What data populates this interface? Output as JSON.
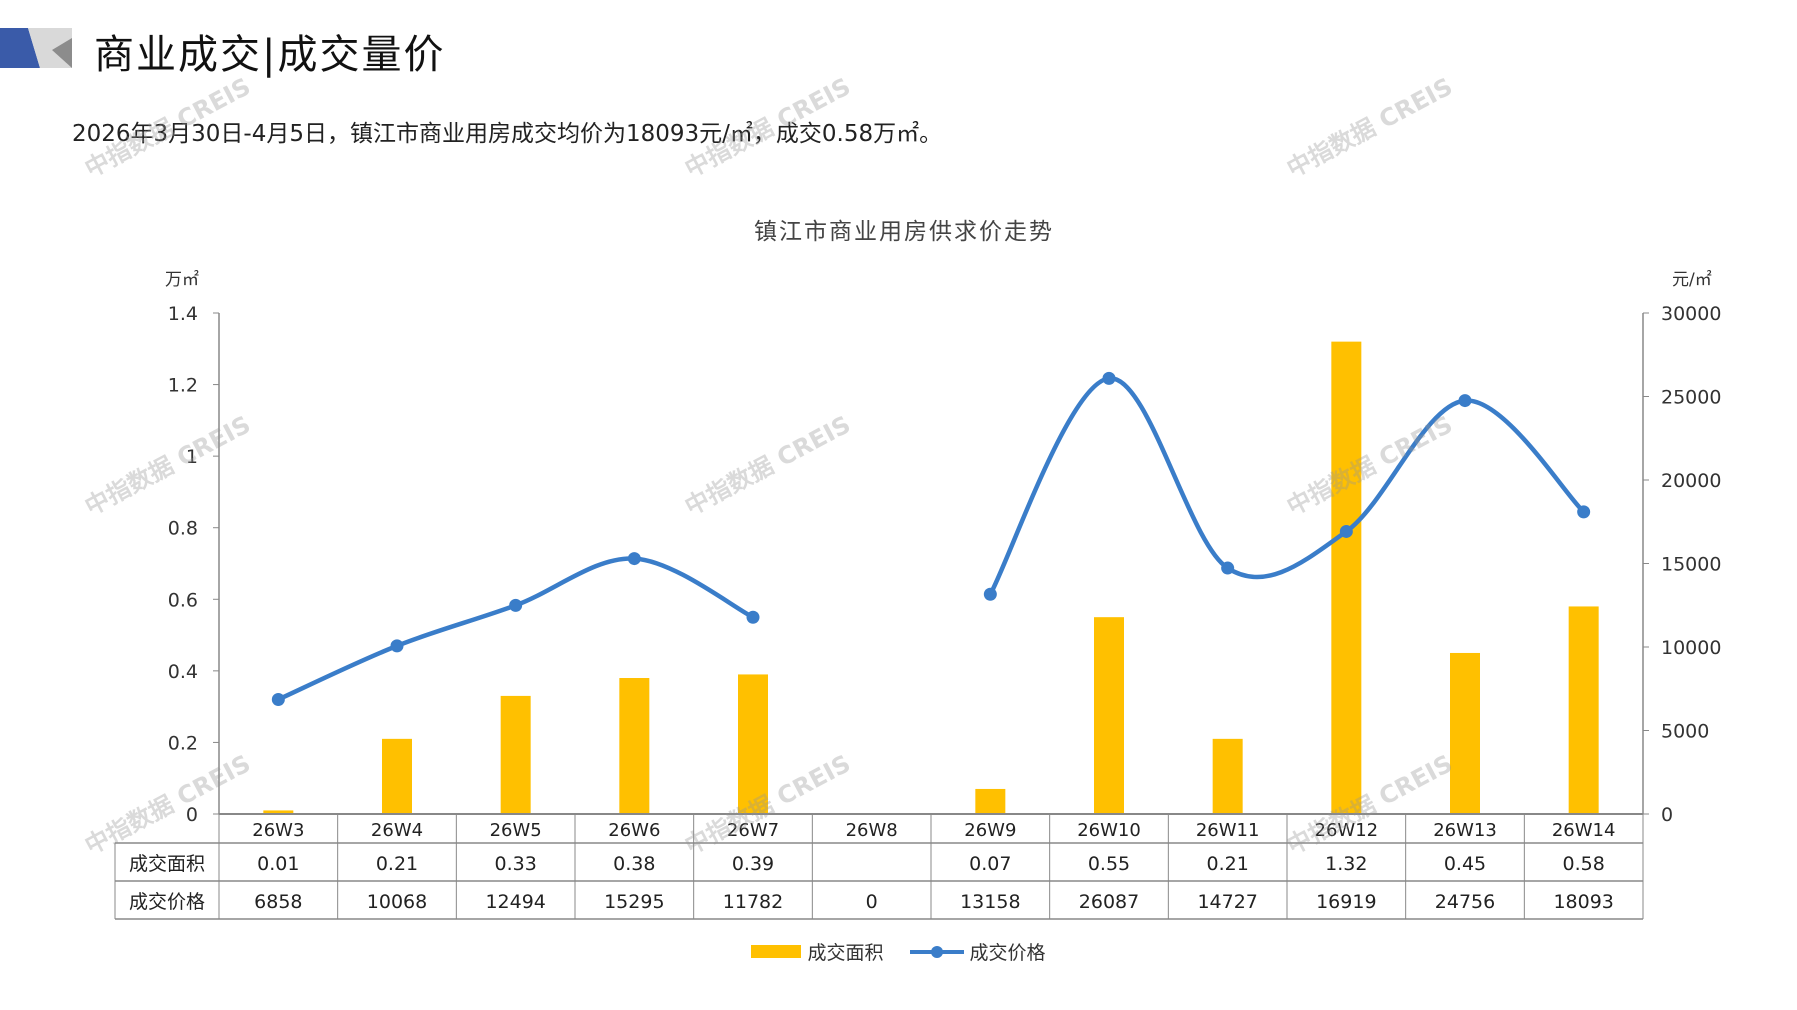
{
  "header": {
    "title": "商业成交|成交量价",
    "subtitle": "2026年3月30日-4月5日，镇江市商业用房成交均价为18093元/㎡，成交0.58万㎡。"
  },
  "watermark": "中指数据 CREIS",
  "colors": {
    "bar": "#FFC000",
    "line": "#3A7DC9",
    "accent": "#3A5BA9"
  },
  "chart_data": {
    "type": "bar+line",
    "title": "镇江市商业用房供求价走势",
    "categories": [
      "26W3",
      "26W4",
      "26W5",
      "26W6",
      "26W7",
      "26W8",
      "26W9",
      "26W10",
      "26W11",
      "26W12",
      "26W13",
      "26W14"
    ],
    "series": [
      {
        "name": "成交面积",
        "type": "bar",
        "axis": "left",
        "values": [
          0.01,
          0.21,
          0.33,
          0.38,
          0.39,
          null,
          0.07,
          0.55,
          0.21,
          1.32,
          0.45,
          0.58
        ],
        "labels": [
          "0.01",
          "0.21",
          "0.33",
          "0.38",
          "0.39",
          "",
          "0.07",
          "0.55",
          "0.21",
          "1.32",
          "0.45",
          "0.58"
        ]
      },
      {
        "name": "成交价格",
        "type": "line",
        "axis": "right",
        "values": [
          6858,
          10068,
          12494,
          15295,
          11782,
          0,
          13158,
          26087,
          14727,
          16919,
          24756,
          18093
        ]
      }
    ],
    "ylabel_left": "万㎡",
    "ylabel_right": "元/㎡",
    "ylim_left": [
      0,
      1.4
    ],
    "yticks_left": [
      "0",
      "0.2",
      "0.4",
      "0.6",
      "0.8",
      "1",
      "1.2",
      "1.4"
    ],
    "ylim_right": [
      0,
      30000
    ],
    "yticks_right": [
      "0",
      "5000",
      "10000",
      "15000",
      "20000",
      "25000",
      "30000"
    ],
    "legend": "bottom",
    "data_table": true
  }
}
